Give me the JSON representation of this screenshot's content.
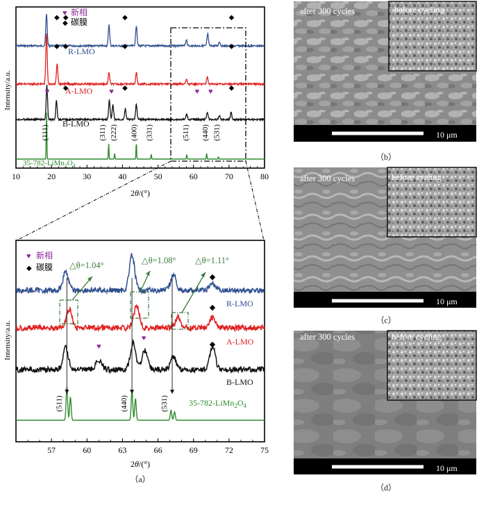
{
  "colors": {
    "R": "#2f4f8f",
    "A": "#e02020",
    "B": "#111111",
    "ref": "#2e8b2e",
    "newphase": "#8e2a9a",
    "annot": "#3a7a3a"
  },
  "chart_data": [
    {
      "type": "line",
      "panel": "top",
      "xlabel": "2θ/(°)",
      "ylabel": "Intensity/a.u.",
      "xlim": [
        10,
        80
      ],
      "xticks": [
        "10",
        "20",
        "30",
        "40",
        "50",
        "60",
        "70",
        "80"
      ],
      "legend": {
        "new_phase": "新相",
        "carbon_film": "碳膜"
      },
      "series": [
        {
          "name": "R-LMO",
          "peaks": [
            [
              18.6,
              0.75
            ],
            [
              36.2,
              0.5
            ],
            [
              43.9,
              0.48
            ],
            [
              64.0,
              0.28
            ],
            [
              58.0,
              0.15
            ],
            [
              67.3,
              0.1
            ]
          ],
          "diamonds": [
            21.5,
            24.0,
            40.7,
            70.7
          ]
        },
        {
          "name": "A-LMO",
          "peaks": [
            [
              18.6,
              0.85
            ],
            [
              21.6,
              0.35
            ],
            [
              36.2,
              0.2
            ],
            [
              43.9,
              0.2
            ],
            [
              63.9,
              0.12
            ],
            [
              58.0,
              0.08
            ]
          ],
          "diamonds": [
            21.5,
            24.0,
            40.7,
            70.7
          ]
        },
        {
          "name": "B-LMO",
          "peaks": [
            [
              18.7,
              0.7
            ],
            [
              21.4,
              0.4
            ],
            [
              36.3,
              0.4
            ],
            [
              37.3,
              0.3
            ],
            [
              40.8,
              0.22
            ],
            [
              43.9,
              0.32
            ],
            [
              58.1,
              0.12
            ],
            [
              63.9,
              0.16
            ],
            [
              67.3,
              0.08
            ],
            [
              70.6,
              0.15
            ]
          ],
          "diamonds": [
            24.0,
            40.7,
            70.7
          ],
          "hearts": [
            18.8,
            36.9,
            61.0,
            64.8
          ]
        },
        {
          "name": "35-782-LiMn2O4",
          "sticks": [
            [
              18.6,
              1.0
            ],
            [
              36.1,
              0.33
            ],
            [
              37.8,
              0.12
            ],
            [
              43.9,
              0.35
            ],
            [
              48.1,
              0.1
            ],
            [
              58.1,
              0.1
            ],
            [
              63.7,
              0.12
            ],
            [
              67.0,
              0.05
            ]
          ],
          "hkl": [
            [
              "(111)",
              18.8
            ],
            [
              "(311)",
              35.0
            ],
            [
              "(222)",
              38.2
            ],
            [
              "(400)",
              43.9
            ],
            [
              "(331)",
              48.2
            ],
            [
              "(511)",
              58.5
            ],
            [
              "(440)",
              64.0
            ],
            [
              "(531)",
              67.2
            ]
          ]
        }
      ]
    },
    {
      "type": "line",
      "panel": "bottom",
      "xlabel": "2θ/(°)",
      "ylabel": "Intensity/a.u.",
      "xlim": [
        54,
        75
      ],
      "xticks": [
        "57",
        "60",
        "63",
        "66",
        "69",
        "72",
        "75"
      ],
      "legend": {
        "new_phase": "新相",
        "carbon_film": "碳膜"
      },
      "annotations": [
        "△θ=1.04°",
        "△θ=1.08°",
        "△θ=1.11°"
      ],
      "series": [
        {
          "name": "R-LMO",
          "peaks": [
            [
              58.2,
              0.55
            ],
            [
              63.8,
              1.0
            ],
            [
              67.3,
              0.45
            ],
            [
              70.6,
              0.2
            ]
          ]
        },
        {
          "name": "A-LMO",
          "peaks": [
            [
              58.5,
              0.6
            ],
            [
              64.2,
              0.75
            ],
            [
              67.7,
              0.35
            ],
            [
              70.6,
              0.35
            ]
          ]
        },
        {
          "name": "B-LMO",
          "peaks": [
            [
              58.2,
              0.55
            ],
            [
              61.0,
              0.25
            ],
            [
              63.9,
              0.7
            ],
            [
              64.9,
              0.5
            ],
            [
              67.3,
              0.35
            ],
            [
              70.6,
              0.6
            ]
          ]
        },
        {
          "name": "35-782-LiMn2O4",
          "sticks": [
            [
              58.3,
              1.0
            ],
            [
              58.6,
              0.7
            ],
            [
              63.8,
              0.9
            ],
            [
              64.1,
              0.65
            ],
            [
              67.1,
              0.3
            ],
            [
              67.4,
              0.25
            ]
          ],
          "hkl": [
            [
              "(511)",
              58.3
            ],
            [
              "(440)",
              63.8
            ],
            [
              "(531)",
              67.2
            ]
          ]
        }
      ]
    }
  ],
  "labels": {
    "R": "R-LMO",
    "A": "A-LMO",
    "B": "B-LMO",
    "ref_prefix": "35-782-LiMn",
    "ref_sub1": "2",
    "ref_mid": "O",
    "ref_sub2": "4",
    "xlabel_prefix": "2",
    "xlabel_theta": "θ",
    "xlabel_suffix": "/(°)",
    "ylabel": "Intensity/a.u.",
    "new_phase": "新相",
    "carbon_film": "碳膜",
    "d1": "△θ=1.04°",
    "d2": "△θ=1.08°",
    "d3": "△θ=1.11°",
    "cap_a": "（a）"
  },
  "sem": {
    "after": "after 300 cycles",
    "before": "before cycling",
    "scale": "10 μm",
    "caps": [
      "（b）",
      "（c）",
      "（d）"
    ]
  }
}
